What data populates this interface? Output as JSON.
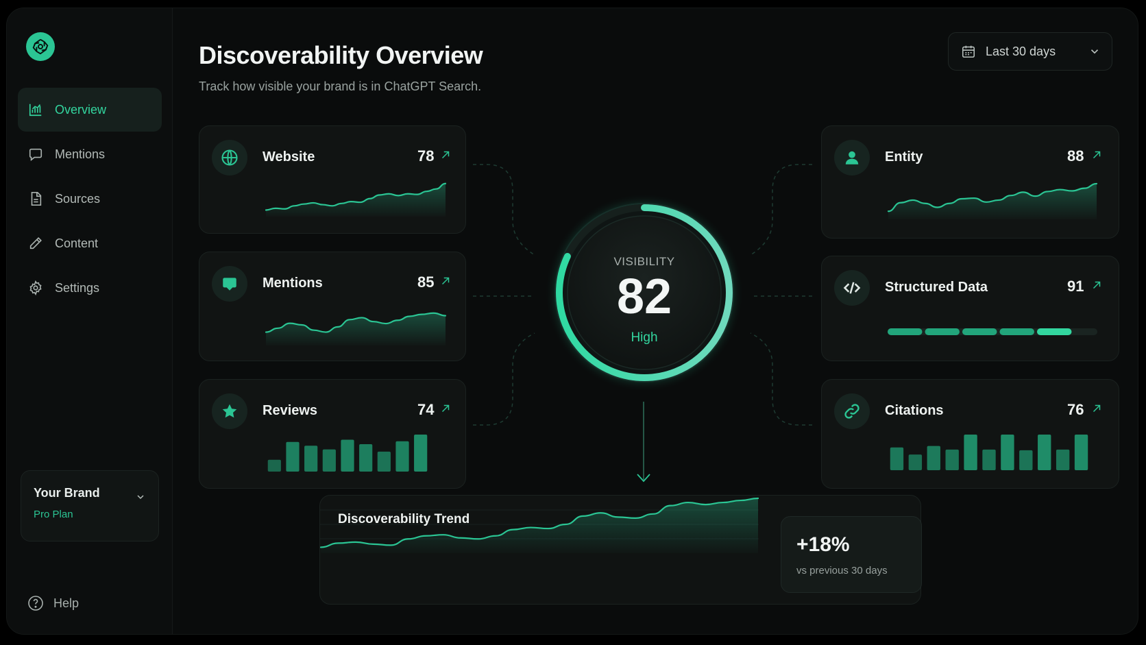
{
  "header": {
    "title": "Discoverability Overview",
    "subtitle": "Track how visible your brand is in ChatGPT Search.",
    "date_range": "Last 30 days"
  },
  "sidebar": {
    "logo": "openai-logo-icon",
    "items": [
      {
        "label": "Overview",
        "icon": "bar-chart-icon",
        "active": true
      },
      {
        "label": "Mentions",
        "icon": "chat-bubble-icon",
        "active": false
      },
      {
        "label": "Sources",
        "icon": "document-icon",
        "active": false
      },
      {
        "label": "Content",
        "icon": "pencil-icon",
        "active": false
      },
      {
        "label": "Settings",
        "icon": "gear-icon",
        "active": false
      }
    ],
    "brand": {
      "name": "Your Brand",
      "plan": "Pro Plan"
    },
    "help": "Help"
  },
  "metrics": {
    "website": {
      "label": "Website",
      "score": "78",
      "icon": "globe-icon",
      "trend": [
        0.08,
        0.14,
        0.12,
        0.22,
        0.28,
        0.32,
        0.26,
        0.22,
        0.3,
        0.36,
        0.34,
        0.46,
        0.58,
        0.62,
        0.56,
        0.62,
        0.6,
        0.7,
        0.78,
        0.96
      ]
    },
    "mentions": {
      "label": "Mentions",
      "score": "85",
      "icon": "speech-bubble-icon",
      "trend": [
        0.28,
        0.4,
        0.55,
        0.5,
        0.34,
        0.28,
        0.44,
        0.66,
        0.72,
        0.6,
        0.54,
        0.64,
        0.76,
        0.82,
        0.86,
        0.78
      ]
    },
    "reviews": {
      "label": "Reviews",
      "score": "74",
      "icon": "star-icon",
      "bars": [
        0.32,
        0.8,
        0.7,
        0.6,
        0.86,
        0.74,
        0.54,
        0.82,
        1.0
      ]
    },
    "entity": {
      "label": "Entity",
      "score": "88",
      "icon": "person-icon",
      "trend": [
        0.12,
        0.38,
        0.46,
        0.36,
        0.24,
        0.36,
        0.5,
        0.52,
        0.4,
        0.46,
        0.6,
        0.7,
        0.58,
        0.72,
        0.78,
        0.74,
        0.82,
        0.96
      ]
    },
    "structured_data": {
      "label": "Structured Data",
      "score": "91",
      "icon": "code-brackets-icon",
      "progress": 0.91
    },
    "citations": {
      "label": "Citations",
      "score": "76",
      "icon": "link-icon",
      "bars": [
        0.64,
        0.44,
        0.68,
        0.58,
        1.0,
        0.58,
        1.0,
        0.56,
        1.0,
        0.58,
        1.0
      ]
    }
  },
  "gauge": {
    "caption": "VISIBILITY",
    "value": 82,
    "level": "High"
  },
  "trend": {
    "title": "Discoverability Trend",
    "change": "+18%",
    "comparison": "vs previous 30 days",
    "series": [
      0.06,
      0.14,
      0.16,
      0.12,
      0.1,
      0.22,
      0.28,
      0.3,
      0.24,
      0.22,
      0.28,
      0.4,
      0.44,
      0.42,
      0.5,
      0.66,
      0.72,
      0.64,
      0.62,
      0.7,
      0.86,
      0.92,
      0.88,
      0.92,
      0.96,
      1.0
    ]
  },
  "colors": {
    "accent": "#2bc594",
    "accent_bright": "#33d69f",
    "bg": "#0a0c0c",
    "card": "#111413"
  }
}
